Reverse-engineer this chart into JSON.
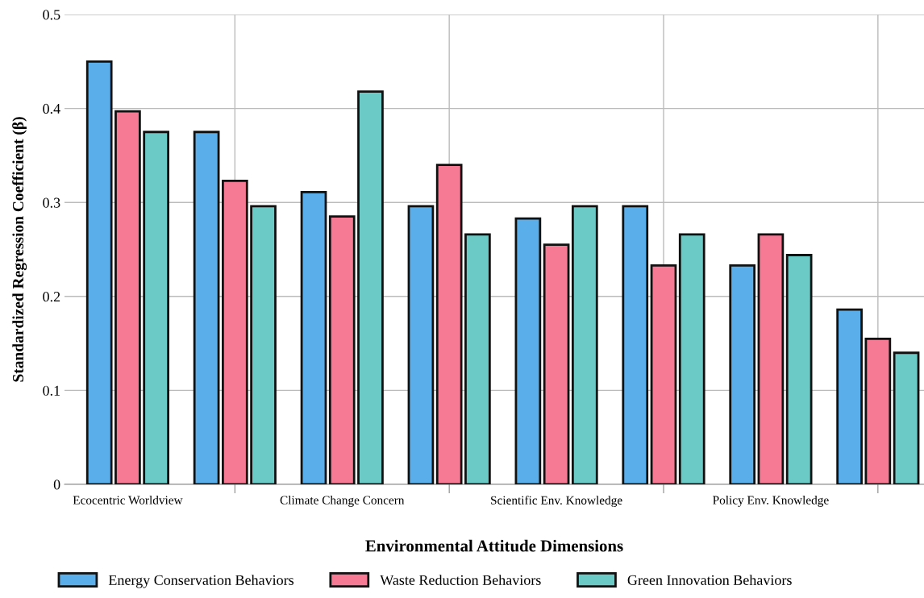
{
  "chart_data": {
    "type": "bar",
    "xlabel": "Environmental Attitude Dimensions",
    "ylabel": "Standardized Regression Coefficient (β)",
    "categories": [
      "Ecocentric Worldview",
      null,
      "Climate Change Concern",
      null,
      "Scientific Env. Knowledge",
      null,
      "Policy Env. Knowledge",
      null
    ],
    "series": [
      {
        "name": "Energy Conservation Behaviors",
        "color": "#5aaeea",
        "values": [
          0.45,
          0.375,
          0.311,
          0.296,
          0.283,
          0.296,
          0.233,
          0.186
        ]
      },
      {
        "name": "Waste Reduction Behaviors",
        "color": "#f67a94",
        "values": [
          0.397,
          0.323,
          0.285,
          0.34,
          0.255,
          0.233,
          0.266,
          0.155
        ]
      },
      {
        "name": "Green Innovation Behaviors",
        "color": "#6ccac6",
        "values": [
          0.375,
          0.296,
          0.418,
          0.266,
          0.296,
          0.266,
          0.244,
          0.14
        ]
      }
    ],
    "ylim": [
      0,
      0.5
    ],
    "yticks": [
      0,
      0.1,
      0.2,
      0.3,
      0.4,
      0.5
    ],
    "grid": true,
    "legend": "bottom"
  }
}
